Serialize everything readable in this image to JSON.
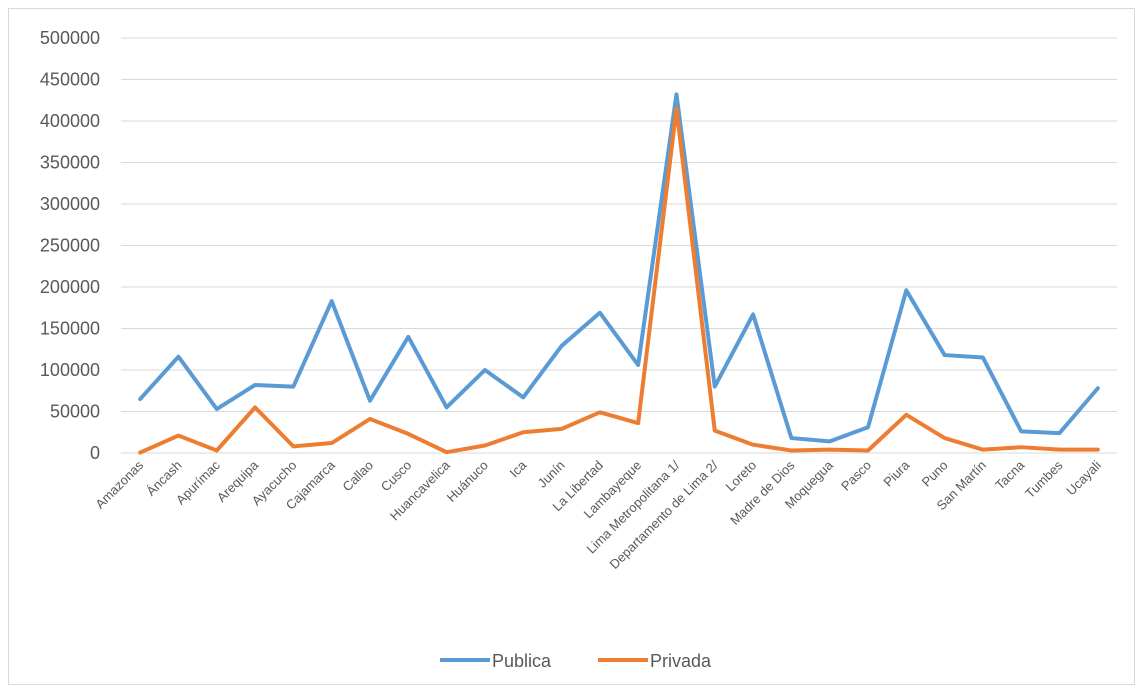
{
  "chart_data": {
    "type": "line",
    "categories": [
      "Amazonas",
      "Áncash",
      "Apurímac",
      "Arequipa",
      "Ayacucho",
      "Cajamarca",
      "Callao",
      "Cusco",
      "Huancavelica",
      "Huánuco",
      "Ica",
      "Junín",
      "La Libertad",
      "Lambayeque",
      "Lima Metropolitana 1/",
      "Departamento de Lima 2/",
      "Loreto",
      "Madre de Dios",
      "Moquegua",
      "Pasco",
      "Piura",
      "Puno",
      "San Martín",
      "Tacna",
      "Tumbes",
      "Ucayali"
    ],
    "series": [
      {
        "name": "Publica",
        "color": "#5b9bd5",
        "values": [
          65000,
          116000,
          53000,
          82000,
          80000,
          183000,
          63000,
          140000,
          55000,
          100000,
          67000,
          129000,
          169000,
          106000,
          432000,
          80000,
          167000,
          18000,
          14000,
          31000,
          196000,
          118000,
          115000,
          26000,
          24000,
          78000
        ]
      },
      {
        "name": "Privada",
        "color": "#ed7d31",
        "values": [
          500,
          21000,
          3000,
          55000,
          8000,
          12000,
          41000,
          23000,
          1000,
          9000,
          25000,
          29000,
          49000,
          36000,
          415000,
          27000,
          10000,
          3000,
          4000,
          3000,
          46000,
          18000,
          4000,
          7000,
          4000,
          4000
        ]
      }
    ],
    "ylim": [
      0,
      500000
    ],
    "yticks": [
      0,
      50000,
      100000,
      150000,
      200000,
      250000,
      300000,
      350000,
      400000,
      450000,
      500000
    ],
    "grid": true,
    "legend": "bottom"
  }
}
